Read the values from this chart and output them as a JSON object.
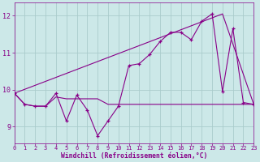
{
  "xlabel": "Windchill (Refroidissement éolien,°C)",
  "background_color": "#cce8e8",
  "grid_color": "#aacccc",
  "line_color": "#880088",
  "xlim": [
    0,
    23
  ],
  "ylim": [
    8.55,
    12.35
  ],
  "yticks": [
    9,
    10,
    11,
    12
  ],
  "xticks": [
    0,
    1,
    2,
    3,
    4,
    5,
    6,
    7,
    8,
    9,
    10,
    11,
    12,
    13,
    14,
    15,
    16,
    17,
    18,
    19,
    20,
    21,
    22,
    23
  ],
  "main_x": [
    0,
    1,
    2,
    3,
    4,
    5,
    6,
    7,
    8,
    9,
    10,
    11,
    12,
    13,
    14,
    15,
    16,
    17,
    18,
    19,
    20,
    21,
    22,
    23
  ],
  "main_y": [
    9.9,
    9.6,
    9.55,
    9.55,
    9.9,
    9.15,
    9.85,
    9.45,
    8.75,
    9.15,
    9.55,
    10.65,
    10.7,
    10.95,
    11.3,
    11.55,
    11.55,
    11.35,
    11.85,
    12.05,
    9.95,
    11.65,
    9.65,
    9.6
  ],
  "trend_x": [
    0,
    20,
    23
  ],
  "trend_y": [
    9.9,
    12.05,
    9.6
  ],
  "flat_x": [
    0,
    1,
    2,
    3,
    4,
    5,
    6,
    7,
    8,
    9,
    10,
    11,
    12,
    13,
    14,
    15,
    16,
    17,
    18,
    19,
    20,
    21,
    22,
    23
  ],
  "flat_y": [
    9.9,
    9.6,
    9.55,
    9.55,
    9.8,
    9.75,
    9.75,
    9.75,
    9.75,
    9.6,
    9.6,
    9.6,
    9.6,
    9.6,
    9.6,
    9.6,
    9.6,
    9.6,
    9.6,
    9.6,
    9.6,
    9.6,
    9.6,
    9.6
  ]
}
